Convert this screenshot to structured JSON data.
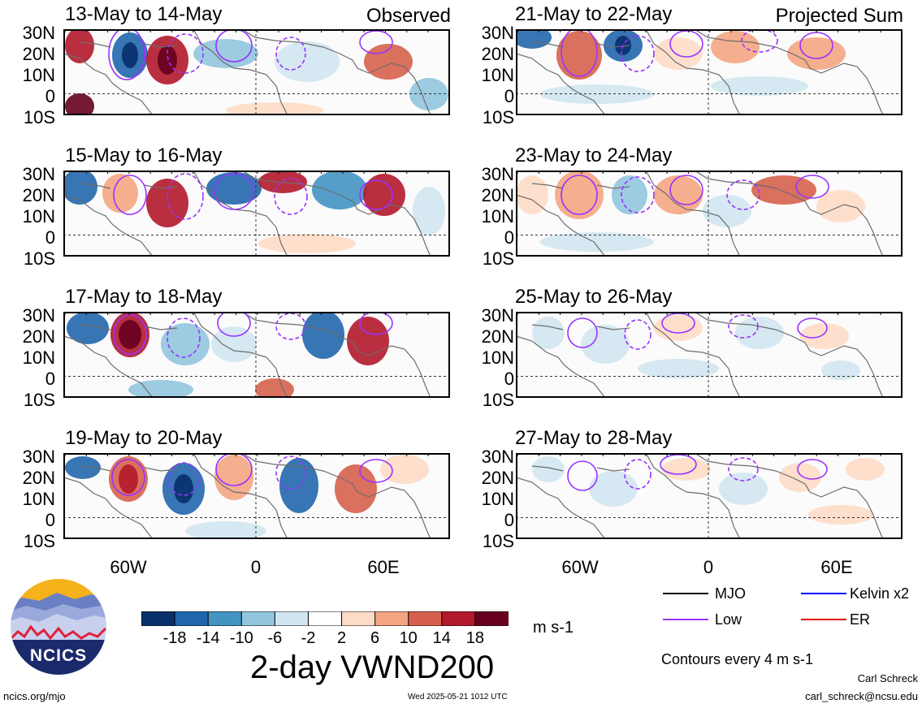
{
  "observed_label": "Observed",
  "projected_label": "Projected Sum",
  "panels_left": [
    {
      "title": "13-May to 14-May"
    },
    {
      "title": "15-May to 16-May"
    },
    {
      "title": "17-May to 18-May"
    },
    {
      "title": "19-May to 20-May"
    }
  ],
  "panels_right": [
    {
      "title": "21-May to 22-May"
    },
    {
      "title": "23-May to 24-May"
    },
    {
      "title": "25-May to 26-May"
    },
    {
      "title": "27-May to 28-May"
    }
  ],
  "lat_ticks": [
    "30N",
    "20N",
    "10N",
    "0",
    "10S"
  ],
  "lon_ticks": [
    "60W",
    "0",
    "60E"
  ],
  "colorbar": {
    "labels": [
      "-18",
      "-14",
      "-10",
      "-6",
      "-2",
      "2",
      "6",
      "10",
      "14",
      "18"
    ],
    "colors": [
      "#08306b",
      "#2166ac",
      "#4393c3",
      "#92c5de",
      "#d1e5f0",
      "#ffffff",
      "#fddbc7",
      "#f4a582",
      "#d6604d",
      "#b2182b",
      "#67001f"
    ],
    "units": "m s-1"
  },
  "variable_title": "2-day VWND200",
  "legend": [
    {
      "label": "MJO",
      "color": "#000000"
    },
    {
      "label": "Kelvin x2",
      "color": "#0000ff"
    },
    {
      "label": "Low",
      "color": "#9933ff"
    },
    {
      "label": "ER",
      "color": "#e00000"
    }
  ],
  "contour_note": "Contours every 4 m s-1",
  "logo_text": "NCICS",
  "footer_left": "ncics.org/mjo",
  "footer_center": "Wed 2025-05-21 1012 UTC",
  "author_name": "Carl Schreck",
  "author_email": "carl_schreck@ncsu.edu"
}
